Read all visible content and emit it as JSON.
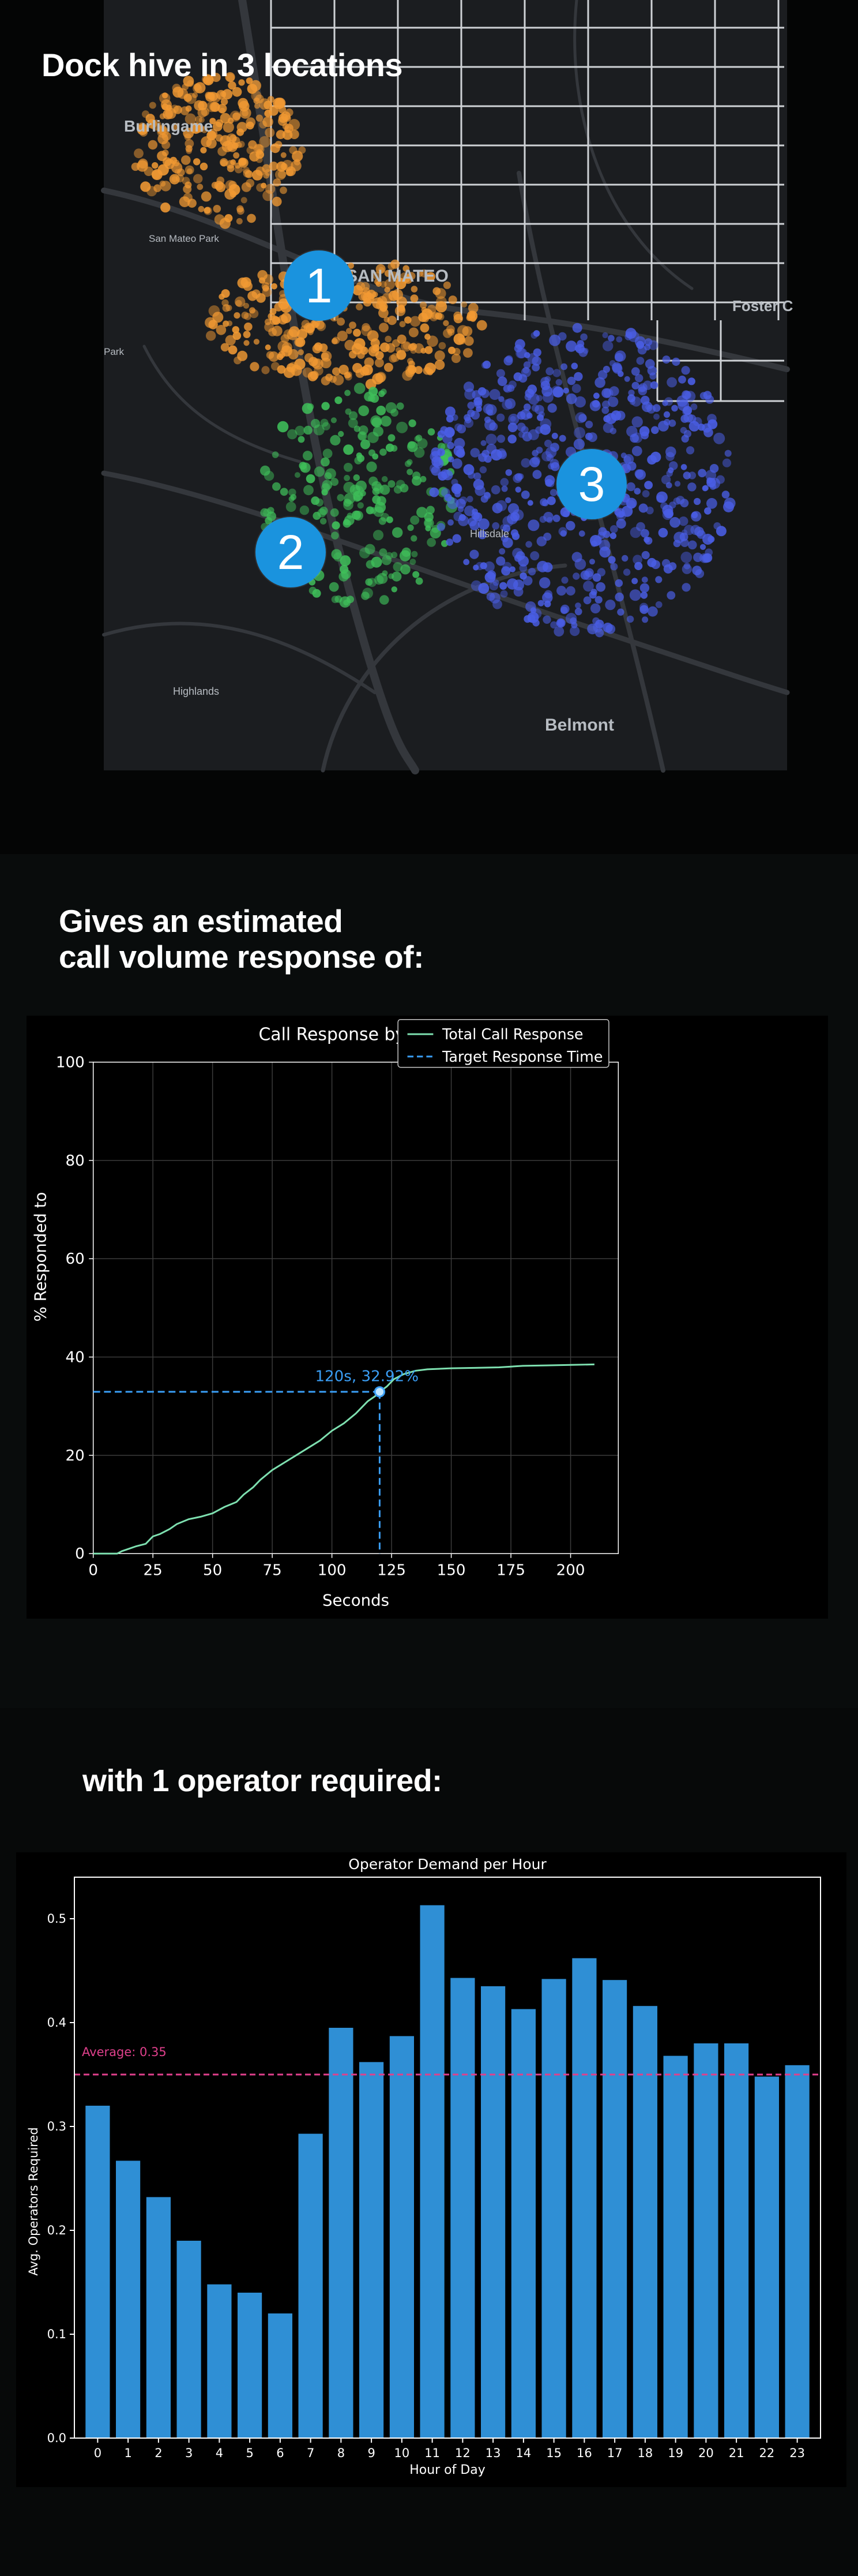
{
  "map_section": {
    "heading": "Dock hive in 3 locations",
    "markers": [
      "1",
      "2",
      "3"
    ],
    "places": [
      "Burlingame",
      "San Mateo Park",
      "SAN MATEO",
      "Foster C",
      "Belmont",
      "Highlands",
      "Hillsdale",
      "Park"
    ],
    "colors": {
      "zone1": "#f29a33",
      "zone2": "#3fc05a",
      "zone3": "#4a5ee6",
      "marker": "#1a93de"
    }
  },
  "response_section": {
    "heading_line1": "Gives an estimated",
    "heading_line2": "call volume response of:"
  },
  "demand_section": {
    "heading": "with 1 operator required:"
  },
  "chart_data": [
    {
      "type": "line",
      "title": "Call Response by Time",
      "xlabel": "Seconds",
      "ylabel": "% Responded to",
      "xlim": [
        0,
        220
      ],
      "ylim": [
        0,
        100
      ],
      "xticks": [
        "0",
        "25",
        "50",
        "75",
        "100",
        "125",
        "150",
        "175",
        "200"
      ],
      "yticks": [
        "0",
        "20",
        "40",
        "60",
        "80",
        "100"
      ],
      "grid": true,
      "legend_position": "top-right",
      "legend": [
        "Total Call Response",
        "Target Response Time"
      ],
      "series": [
        {
          "name": "Total Call Response",
          "color": "#7ee0b0",
          "x": [
            0,
            10,
            12,
            15,
            18,
            22,
            25,
            28,
            32,
            35,
            40,
            45,
            50,
            55,
            60,
            63,
            67,
            70,
            75,
            80,
            85,
            90,
            95,
            100,
            105,
            110,
            113,
            115,
            118,
            120,
            123,
            126,
            130,
            135,
            140,
            150,
            160,
            170,
            180,
            190,
            200,
            210
          ],
          "y": [
            0,
            0,
            0.5,
            1,
            1.5,
            2,
            3.5,
            4,
            5,
            6,
            7,
            7.5,
            8.2,
            9.5,
            10.5,
            12,
            13.5,
            15,
            17,
            18.5,
            20,
            21.5,
            23,
            25,
            26.5,
            28.5,
            30,
            31,
            32,
            32.92,
            34,
            35.5,
            36.5,
            37.2,
            37.5,
            37.7,
            37.8,
            37.9,
            38.2,
            38.3,
            38.4,
            38.5
          ]
        }
      ],
      "target": {
        "x": 120,
        "y": 32.92,
        "label": "120s, 32.92%",
        "color": "#3a9ef5"
      }
    },
    {
      "type": "bar",
      "title": "Operator Demand per Hour",
      "xlabel": "Hour of Day",
      "ylabel": "Avg. Operators Required",
      "ylim": [
        0,
        0.54
      ],
      "yticks": [
        "0.0",
        "0.1",
        "0.2",
        "0.3",
        "0.4",
        "0.5"
      ],
      "grid": false,
      "categories": [
        "0",
        "1",
        "2",
        "3",
        "4",
        "5",
        "6",
        "7",
        "8",
        "9",
        "10",
        "11",
        "12",
        "13",
        "14",
        "15",
        "16",
        "17",
        "18",
        "19",
        "20",
        "21",
        "22",
        "23"
      ],
      "values": [
        0.32,
        0.267,
        0.232,
        0.19,
        0.148,
        0.14,
        0.12,
        0.293,
        0.395,
        0.362,
        0.387,
        0.513,
        0.443,
        0.435,
        0.413,
        0.442,
        0.462,
        0.441,
        0.416,
        0.368,
        0.38,
        0.38,
        0.348,
        0.359
      ],
      "bar_color": "#2f8fd5",
      "average": {
        "value": 0.35,
        "label": "Average: 0.35",
        "color": "#e0408c"
      }
    }
  ]
}
